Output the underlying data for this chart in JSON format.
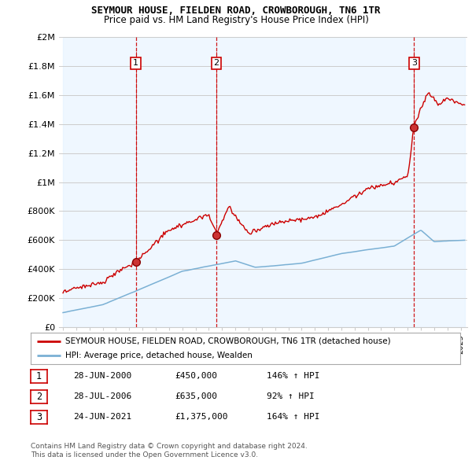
{
  "title1": "SEYMOUR HOUSE, FIELDEN ROAD, CROWBOROUGH, TN6 1TR",
  "title2": "Price paid vs. HM Land Registry's House Price Index (HPI)",
  "ylabel_ticks": [
    "£0",
    "£200K",
    "£400K",
    "£600K",
    "£800K",
    "£1M",
    "£1.2M",
    "£1.4M",
    "£1.6M",
    "£1.8M",
    "£2M"
  ],
  "ytick_values": [
    0,
    200000,
    400000,
    600000,
    800000,
    1000000,
    1200000,
    1400000,
    1600000,
    1800000,
    2000000
  ],
  "xlim_start": 1994.7,
  "xlim_end": 2025.5,
  "ylim_min": 0,
  "ylim_max": 2000000,
  "sale_dates": [
    2000.49,
    2006.57,
    2021.49
  ],
  "sale_prices": [
    450000,
    635000,
    1375000
  ],
  "sale_labels": [
    "1",
    "2",
    "3"
  ],
  "red_line_color": "#cc0000",
  "blue_line_color": "#7ab0d4",
  "vline_color": "#cc0000",
  "grid_color": "#cccccc",
  "fill_color": "#ddeeff",
  "background_color": "#ffffff",
  "legend_label_red": "SEYMOUR HOUSE, FIELDEN ROAD, CROWBOROUGH, TN6 1TR (detached house)",
  "legend_label_blue": "HPI: Average price, detached house, Wealden",
  "table_rows": [
    [
      "1",
      "28-JUN-2000",
      "£450,000",
      "146% ↑ HPI"
    ],
    [
      "2",
      "28-JUL-2006",
      "£635,000",
      "92% ↑ HPI"
    ],
    [
      "3",
      "24-JUN-2021",
      "£1,375,000",
      "164% ↑ HPI"
    ]
  ],
  "footnote1": "Contains HM Land Registry data © Crown copyright and database right 2024.",
  "footnote2": "This data is licensed under the Open Government Licence v3.0."
}
